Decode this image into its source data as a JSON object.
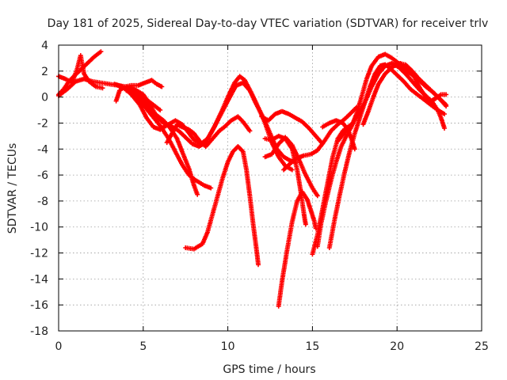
{
  "chart_data": {
    "type": "scatter",
    "title": "Day 181 of 2025, Sidereal Day-to-day VTEC variation (SDTVAR) for receiver trlv",
    "xlabel": "GPS time / hours",
    "ylabel": "SDTVAR / TECUs",
    "xlim": [
      0,
      25
    ],
    "ylim": [
      -18,
      4
    ],
    "xticks": [
      0,
      5,
      10,
      15,
      20,
      25
    ],
    "yticks": [
      4,
      2,
      0,
      -2,
      -4,
      -6,
      -8,
      -10,
      -12,
      -14,
      -16,
      -18
    ],
    "grid": true,
    "marker": "+",
    "color": "#ff0000",
    "tracks": [
      [
        [
          0.0,
          0.2
        ],
        [
          0.3,
          0.6
        ],
        [
          0.6,
          1.2
        ],
        [
          0.9,
          1.6
        ],
        [
          1.3,
          2.1
        ],
        [
          1.7,
          2.6
        ],
        [
          2.1,
          3.1
        ],
        [
          2.5,
          3.5
        ]
      ],
      [
        [
          0.0,
          1.6
        ],
        [
          0.4,
          1.4
        ],
        [
          0.8,
          1.1
        ],
        [
          1.1,
          2.2
        ],
        [
          1.3,
          3.2
        ],
        [
          1.5,
          1.8
        ],
        [
          1.8,
          1.2
        ],
        [
          2.2,
          0.8
        ],
        [
          2.6,
          0.7
        ]
      ],
      [
        [
          0.0,
          0.1
        ],
        [
          0.5,
          0.6
        ],
        [
          1.0,
          1.2
        ],
        [
          1.5,
          1.4
        ],
        [
          2.0,
          1.2
        ],
        [
          2.5,
          1.1
        ],
        [
          3.0,
          1.0
        ],
        [
          3.5,
          0.9
        ],
        [
          4.0,
          0.6
        ],
        [
          4.5,
          0.4
        ],
        [
          5.0,
          0.0
        ],
        [
          5.5,
          -0.5
        ],
        [
          6.0,
          -1.0
        ]
      ],
      [
        [
          3.3,
          1.0
        ],
        [
          3.8,
          0.8
        ],
        [
          4.3,
          0.2
        ],
        [
          4.8,
          -0.6
        ],
        [
          5.2,
          -1.6
        ],
        [
          5.6,
          -2.3
        ],
        [
          6.0,
          -2.5
        ],
        [
          6.5,
          -2.1
        ],
        [
          6.9,
          -1.8
        ],
        [
          7.3,
          -2.1
        ],
        [
          7.6,
          -2.6
        ],
        [
          8.0,
          -3.3
        ],
        [
          8.4,
          -3.6
        ],
        [
          8.8,
          -3.2
        ],
        [
          9.2,
          -2.3
        ],
        [
          9.6,
          -1.2
        ],
        [
          10.0,
          0.0
        ],
        [
          10.4,
          1.1
        ],
        [
          10.7,
          1.6
        ],
        [
          11.0,
          1.3
        ],
        [
          11.4,
          0.3
        ],
        [
          11.8,
          -0.8
        ],
        [
          12.2,
          -2.0
        ],
        [
          12.6,
          -3.5
        ],
        [
          13.0,
          -4.6
        ],
        [
          13.4,
          -5.3
        ],
        [
          13.8,
          -5.6
        ]
      ],
      [
        [
          3.5,
          0.9
        ],
        [
          4.0,
          0.8
        ],
        [
          4.5,
          0.6
        ],
        [
          5.0,
          0.2
        ],
        [
          5.4,
          -0.6
        ],
        [
          5.8,
          -1.5
        ],
        [
          6.2,
          -2.0
        ],
        [
          6.6,
          -2.2
        ],
        [
          7.1,
          -2.6
        ],
        [
          7.5,
          -3.1
        ],
        [
          7.9,
          -3.6
        ],
        [
          8.3,
          -3.8
        ],
        [
          8.7,
          -3.5
        ],
        [
          9.0,
          -2.8
        ],
        [
          9.4,
          -1.8
        ],
        [
          9.8,
          -0.8
        ],
        [
          10.2,
          0.2
        ],
        [
          10.5,
          0.9
        ],
        [
          10.9,
          1.1
        ],
        [
          11.3,
          0.5
        ],
        [
          11.7,
          -0.6
        ],
        [
          12.1,
          -1.6
        ],
        [
          12.5,
          -2.8
        ],
        [
          12.9,
          -4.0
        ],
        [
          13.3,
          -4.6
        ],
        [
          13.7,
          -4.9
        ],
        [
          14.0,
          -5.0
        ]
      ],
      [
        [
          3.6,
          0.8
        ],
        [
          4.1,
          0.7
        ],
        [
          4.6,
          0.4
        ],
        [
          5.0,
          -0.2
        ],
        [
          5.4,
          -1.0
        ],
        [
          5.9,
          -1.5
        ],
        [
          6.2,
          -1.8
        ],
        [
          6.6,
          -2.4
        ],
        [
          7.0,
          -3.2
        ],
        [
          7.3,
          -4.2
        ],
        [
          7.7,
          -5.5
        ],
        [
          8.0,
          -6.8
        ],
        [
          8.2,
          -7.5
        ]
      ],
      [
        [
          4.0,
          0.5
        ],
        [
          4.5,
          0.2
        ],
        [
          5.0,
          -0.6
        ],
        [
          5.5,
          -1.4
        ],
        [
          6.0,
          -2.2
        ],
        [
          6.5,
          -3.2
        ],
        [
          6.9,
          -4.2
        ],
        [
          7.3,
          -5.2
        ],
        [
          7.7,
          -6.0
        ],
        [
          8.1,
          -6.4
        ],
        [
          8.6,
          -6.8
        ],
        [
          9.0,
          -7.0
        ]
      ],
      [
        [
          3.4,
          -0.3
        ],
        [
          3.6,
          0.5
        ],
        [
          3.9,
          0.8
        ],
        [
          4.3,
          0.9
        ],
        [
          4.7,
          0.9
        ],
        [
          5.1,
          1.1
        ],
        [
          5.5,
          1.3
        ],
        [
          5.8,
          1.0
        ],
        [
          6.1,
          0.8
        ]
      ],
      [
        [
          6.4,
          -3.5
        ],
        [
          6.7,
          -2.8
        ],
        [
          7.0,
          -2.1
        ],
        [
          7.3,
          -2.3
        ],
        [
          7.7,
          -2.5
        ],
        [
          8.0,
          -2.8
        ],
        [
          8.4,
          -3.5
        ],
        [
          8.7,
          -3.8
        ],
        [
          9.1,
          -3.2
        ],
        [
          9.5,
          -2.6
        ],
        [
          9.8,
          -2.3
        ],
        [
          10.2,
          -1.8
        ],
        [
          10.6,
          -1.5
        ],
        [
          10.9,
          -1.9
        ],
        [
          11.3,
          -2.6
        ]
      ],
      [
        [
          7.5,
          -11.6
        ],
        [
          8.0,
          -11.7
        ],
        [
          8.5,
          -11.3
        ],
        [
          8.8,
          -10.4
        ],
        [
          9.1,
          -9.0
        ],
        [
          9.4,
          -7.6
        ],
        [
          9.7,
          -6.2
        ],
        [
          10.0,
          -5.0
        ],
        [
          10.3,
          -4.2
        ],
        [
          10.6,
          -3.8
        ],
        [
          10.9,
          -4.2
        ],
        [
          11.1,
          -5.6
        ],
        [
          11.3,
          -7.6
        ],
        [
          11.5,
          -9.8
        ],
        [
          11.7,
          -11.8
        ],
        [
          11.8,
          -12.9
        ]
      ],
      [
        [
          12.0,
          -1.5
        ],
        [
          12.4,
          -1.8
        ],
        [
          12.8,
          -1.3
        ],
        [
          13.2,
          -1.1
        ],
        [
          13.6,
          -1.3
        ],
        [
          14.0,
          -1.6
        ],
        [
          14.4,
          -1.9
        ],
        [
          14.8,
          -2.4
        ],
        [
          15.2,
          -3.0
        ],
        [
          15.6,
          -3.6
        ]
      ],
      [
        [
          12.2,
          -3.2
        ],
        [
          12.6,
          -3.3
        ],
        [
          13.0,
          -3.0
        ],
        [
          13.4,
          -3.2
        ],
        [
          13.8,
          -4.0
        ],
        [
          14.1,
          -5.6
        ],
        [
          14.3,
          -7.2
        ],
        [
          14.5,
          -9.0
        ],
        [
          14.6,
          -9.8
        ]
      ],
      [
        [
          12.2,
          -4.6
        ],
        [
          12.6,
          -4.4
        ],
        [
          13.0,
          -3.6
        ],
        [
          13.4,
          -3.1
        ],
        [
          13.8,
          -3.7
        ],
        [
          14.2,
          -4.8
        ],
        [
          14.6,
          -6.0
        ],
        [
          15.0,
          -7.0
        ],
        [
          15.3,
          -7.6
        ]
      ],
      [
        [
          13.0,
          -16.1
        ],
        [
          13.2,
          -14.2
        ],
        [
          13.5,
          -11.8
        ],
        [
          13.8,
          -9.6
        ],
        [
          14.1,
          -8.0
        ],
        [
          14.4,
          -7.3
        ],
        [
          14.7,
          -7.9
        ],
        [
          14.9,
          -8.7
        ],
        [
          15.1,
          -9.5
        ],
        [
          15.2,
          -10.1
        ]
      ],
      [
        [
          13.3,
          -5.6
        ],
        [
          13.7,
          -5.1
        ],
        [
          14.1,
          -4.7
        ],
        [
          14.5,
          -4.5
        ],
        [
          14.9,
          -4.4
        ],
        [
          15.3,
          -4.1
        ],
        [
          15.7,
          -3.4
        ],
        [
          16.1,
          -2.6
        ],
        [
          16.5,
          -2.1
        ],
        [
          16.9,
          -1.7
        ],
        [
          17.3,
          -1.2
        ],
        [
          17.6,
          -0.8
        ]
      ],
      [
        [
          15.0,
          -12.1
        ],
        [
          15.3,
          -10.6
        ],
        [
          15.6,
          -8.6
        ],
        [
          15.9,
          -6.6
        ],
        [
          16.2,
          -4.6
        ],
        [
          16.5,
          -3.2
        ],
        [
          16.8,
          -2.6
        ],
        [
          17.1,
          -2.3
        ],
        [
          17.4,
          -2.0
        ]
      ],
      [
        [
          15.3,
          -11.5
        ],
        [
          15.5,
          -9.8
        ],
        [
          15.8,
          -8.0
        ],
        [
          16.1,
          -6.4
        ],
        [
          16.4,
          -5.0
        ],
        [
          16.7,
          -3.8
        ],
        [
          17.0,
          -3.0
        ],
        [
          17.3,
          -2.3
        ],
        [
          17.6,
          -1.3
        ],
        [
          17.9,
          0.0
        ],
        [
          18.2,
          1.4
        ],
        [
          18.5,
          2.4
        ],
        [
          18.9,
          3.1
        ],
        [
          19.3,
          3.3
        ],
        [
          19.7,
          3.0
        ],
        [
          20.1,
          2.6
        ],
        [
          20.5,
          2.1
        ],
        [
          20.9,
          1.7
        ],
        [
          21.3,
          1.3
        ],
        [
          21.7,
          0.8
        ],
        [
          22.1,
          0.4
        ],
        [
          22.5,
          -0.1
        ],
        [
          22.9,
          -0.7
        ]
      ],
      [
        [
          16.0,
          -11.6
        ],
        [
          16.3,
          -9.5
        ],
        [
          16.6,
          -7.6
        ],
        [
          16.9,
          -5.8
        ],
        [
          17.2,
          -4.2
        ],
        [
          17.5,
          -2.8
        ],
        [
          17.8,
          -1.6
        ],
        [
          18.1,
          -0.4
        ],
        [
          18.4,
          0.8
        ],
        [
          18.7,
          1.8
        ],
        [
          19.0,
          2.4
        ],
        [
          19.3,
          2.5
        ],
        [
          19.6,
          2.2
        ],
        [
          20.0,
          1.7
        ],
        [
          20.4,
          1.2
        ],
        [
          20.8,
          0.6
        ],
        [
          21.2,
          0.2
        ],
        [
          21.6,
          -0.2
        ],
        [
          22.0,
          -0.6
        ],
        [
          22.4,
          -1.0
        ],
        [
          22.8,
          -1.3
        ]
      ],
      [
        [
          15.6,
          -2.3
        ],
        [
          16.0,
          -2.0
        ],
        [
          16.4,
          -1.8
        ],
        [
          16.8,
          -2.0
        ],
        [
          17.1,
          -2.5
        ],
        [
          17.3,
          -3.2
        ],
        [
          17.5,
          -4.0
        ]
      ],
      [
        [
          16.5,
          -3.4
        ],
        [
          16.9,
          -2.7
        ],
        [
          17.3,
          -2.2
        ],
        [
          17.7,
          -1.3
        ],
        [
          18.1,
          -0.4
        ],
        [
          18.5,
          0.8
        ],
        [
          18.9,
          1.8
        ],
        [
          19.3,
          2.4
        ],
        [
          19.7,
          2.6
        ],
        [
          20.1,
          2.3
        ],
        [
          20.5,
          1.8
        ],
        [
          20.9,
          1.2
        ],
        [
          21.3,
          0.6
        ],
        [
          21.7,
          0.1
        ],
        [
          22.1,
          -0.4
        ],
        [
          22.4,
          -1.0
        ],
        [
          22.6,
          -1.6
        ],
        [
          22.8,
          -2.4
        ]
      ],
      [
        [
          18.0,
          -2.1
        ],
        [
          18.3,
          -1.1
        ],
        [
          18.6,
          0.0
        ],
        [
          18.9,
          1.0
        ],
        [
          19.3,
          1.8
        ],
        [
          19.7,
          2.3
        ],
        [
          20.1,
          2.6
        ],
        [
          20.5,
          2.5
        ],
        [
          20.9,
          2.0
        ],
        [
          21.3,
          1.4
        ],
        [
          21.7,
          0.9
        ],
        [
          22.1,
          0.4
        ],
        [
          22.5,
          -0.1
        ],
        [
          22.9,
          -0.6
        ]
      ],
      [
        [
          19.8,
          2.4
        ],
        [
          20.2,
          2.6
        ],
        [
          20.5,
          2.2
        ],
        [
          20.9,
          1.9
        ],
        [
          21.3,
          0.8
        ],
        [
          21.7,
          0.0
        ],
        [
          22.0,
          -0.3
        ],
        [
          22.3,
          -0.1
        ],
        [
          22.6,
          0.2
        ],
        [
          22.9,
          0.2
        ]
      ]
    ]
  }
}
